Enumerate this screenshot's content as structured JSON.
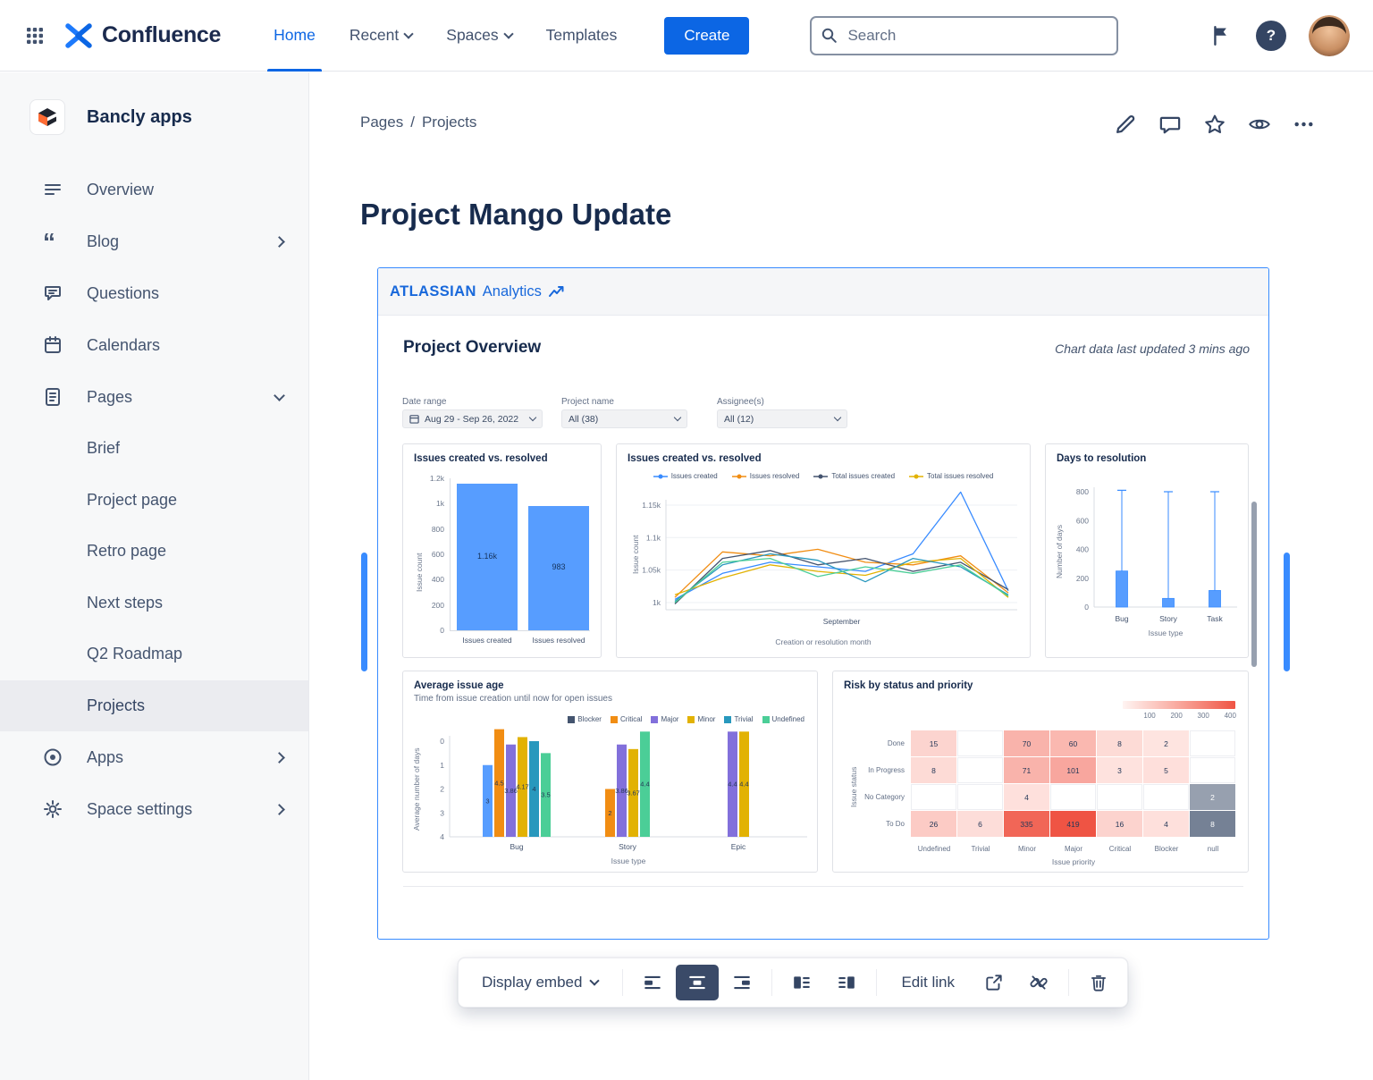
{
  "topnav": {
    "product_name": "Confluence",
    "nav_items": [
      {
        "label": "Home",
        "active": true,
        "chevron": false
      },
      {
        "label": "Recent",
        "active": false,
        "chevron": true
      },
      {
        "label": "Spaces",
        "active": false,
        "chevron": true
      },
      {
        "label": "Templates",
        "active": false,
        "chevron": false
      }
    ],
    "create_label": "Create",
    "search_placeholder": "Search",
    "icons": [
      "grid-icon",
      "search-icon",
      "flag-icon",
      "help-icon",
      "avatar"
    ]
  },
  "sidebar": {
    "space_name": "Bancly apps",
    "items": [
      {
        "label": "Overview",
        "icon": "overview-icon",
        "chevron": ""
      },
      {
        "label": "Blog",
        "icon": "blog-icon",
        "chevron": "right"
      },
      {
        "label": "Questions",
        "icon": "questions-icon",
        "chevron": ""
      },
      {
        "label": "Calendars",
        "icon": "calendar-icon",
        "chevron": ""
      },
      {
        "label": "Pages",
        "icon": "pages-icon",
        "chevron": "down"
      }
    ],
    "page_items": [
      {
        "label": "Brief",
        "selected": false
      },
      {
        "label": "Project page",
        "selected": false
      },
      {
        "label": "Retro page",
        "selected": false
      },
      {
        "label": "Next steps",
        "selected": false
      },
      {
        "label": "Q2 Roadmap",
        "selected": false
      },
      {
        "label": "Projects",
        "selected": true
      }
    ],
    "bottom_items": [
      {
        "label": "Apps",
        "icon": "apps-icon",
        "chevron": "right"
      },
      {
        "label": "Space settings",
        "icon": "gear-icon",
        "chevron": "right"
      }
    ]
  },
  "content": {
    "breadcrumb": [
      "Pages",
      "Projects"
    ],
    "breadcrumb_separator": "/",
    "title": "Project Mango Update",
    "action_icons": [
      "edit-icon",
      "comment-icon",
      "star-icon",
      "watch-icon",
      "more-icon"
    ]
  },
  "embed": {
    "brand_primary": "ATLASSIAN",
    "brand_secondary": "Analytics",
    "panel_title": "Project Overview",
    "updated_note": "Chart data last updated 3 mins ago",
    "filters": [
      {
        "label": "Date range",
        "value": "Aug 29 - Sep 26, 2022",
        "calendar_icon": true
      },
      {
        "label": "Project name",
        "value": "All (38)",
        "calendar_icon": false
      },
      {
        "label": "Assignee(s)",
        "value": "All (12)",
        "calendar_icon": false
      }
    ]
  },
  "chart_data": [
    {
      "type": "bar",
      "title": "Issues created vs. resolved",
      "ylabel": "Issue count",
      "xlabel": "",
      "categories": [
        "Issues created",
        "Issues resolved"
      ],
      "values": [
        1160,
        983
      ],
      "value_labels": [
        "1.16k",
        "983"
      ],
      "yticks": [
        "1.2k",
        "1k",
        "800",
        "600",
        "400",
        "200",
        "0"
      ],
      "ylim": [
        0,
        1200
      ],
      "bar_color": "#579DFF"
    },
    {
      "type": "line",
      "title": "Issues created vs. resolved",
      "ylabel": "Issue count",
      "xlabel": "Creation or resolution month",
      "x_tick_label": "September",
      "yticks": [
        "1.15k",
        "1.1k",
        "1.05k",
        "1k"
      ],
      "ytick_values": [
        1150,
        1100,
        1050,
        1000
      ],
      "ylim": [
        990,
        1185
      ],
      "series": [
        {
          "name": "Issues created",
          "color": "#388BFF",
          "in_legend": true,
          "values": [
            1005,
            1045,
            1062,
            1055,
            1048,
            1075,
            1170,
            1018
          ]
        },
        {
          "name": "Issues resolved",
          "color": "#F18D13",
          "in_legend": true,
          "values": [
            1008,
            1078,
            1072,
            1082,
            1062,
            1058,
            1072,
            1015
          ]
        },
        {
          "name": "Total issues created",
          "color": "#44546F",
          "in_legend": true,
          "values": [
            998,
            1068,
            1080,
            1058,
            1068,
            1048,
            1062,
            1020
          ]
        },
        {
          "name": "Total issues resolved",
          "color": "#E2B203",
          "in_legend": true,
          "values": [
            1012,
            1038,
            1058,
            1048,
            1042,
            1062,
            1068,
            1008
          ]
        },
        {
          "name": "",
          "color": "#2898BD",
          "in_legend": false,
          "values": [
            1002,
            1058,
            1075,
            1065,
            1032,
            1068,
            1055,
            1012
          ]
        },
        {
          "name": "",
          "color": "#4BCE97",
          "in_legend": false,
          "values": [
            1000,
            1062,
            1068,
            1040,
            1055,
            1045,
            1058,
            1010
          ]
        }
      ]
    },
    {
      "type": "boxplot",
      "title": "Days to resolution",
      "ylabel": "Number of days",
      "xlabel": "Issue type",
      "categories": [
        "Bug",
        "Story",
        "Task"
      ],
      "yticks": [
        "800",
        "600",
        "400",
        "200",
        "0"
      ],
      "ylim": [
        0,
        820
      ],
      "boxes": [
        {
          "whisker_high": 810,
          "box_top": 250,
          "box_bottom": 0
        },
        {
          "whisker_high": 800,
          "box_top": 60,
          "box_bottom": 0
        },
        {
          "whisker_high": 800,
          "box_top": 115,
          "box_bottom": 0
        }
      ],
      "box_color": "#579DFF",
      "line_color": "#388BFF"
    },
    {
      "type": "bar",
      "title": "Average issue age",
      "subtitle": "Time from issue creation until now for open issues",
      "ylabel": "Average number of days",
      "xlabel": "Issue type",
      "yticks": [
        "4",
        "3",
        "2",
        "1",
        "0"
      ],
      "ylim": [
        0,
        4.7
      ],
      "legend": [
        {
          "name": "Blocker",
          "color": "#44546F"
        },
        {
          "name": "Critical",
          "color": "#F18D13"
        },
        {
          "name": "Major",
          "color": "#8270DB"
        },
        {
          "name": "Minor",
          "color": "#E2B203"
        },
        {
          "name": "Trivial",
          "color": "#2898BD"
        },
        {
          "name": "Undefined",
          "color": "#4BCE97"
        }
      ],
      "groups": [
        {
          "category": "Bug",
          "bars": [
            {
              "value": 3,
              "label": "3",
              "color": "#579DFF"
            },
            {
              "value": 4.5,
              "label": "4.5",
              "color": "#F18D13"
            },
            {
              "value": 3.86,
              "label": "3.86",
              "color": "#8270DB"
            },
            {
              "value": 4.17,
              "label": "4.17",
              "color": "#E2B203"
            },
            {
              "value": 4,
              "label": "4",
              "color": "#2898BD"
            },
            {
              "value": 3.5,
              "label": "3.5",
              "color": "#4BCE97"
            }
          ]
        },
        {
          "category": "Story",
          "bars": [
            {
              "value": 2,
              "label": "2",
              "color": "#F18D13"
            },
            {
              "value": 3.86,
              "label": "3.86",
              "color": "#8270DB"
            },
            {
              "value": 3.67,
              "label": "3.67",
              "color": "#E2B203"
            },
            {
              "value": 4.4,
              "label": "4.4",
              "color": "#4BCE97"
            }
          ]
        },
        {
          "category": "Epic",
          "bars": [
            {
              "value": 4.4,
              "label": "4.4",
              "color": "#8270DB"
            },
            {
              "value": 4.4,
              "label": "4.4",
              "color": "#E2B203"
            }
          ]
        }
      ]
    },
    {
      "type": "heatmap",
      "title": "Risk by status and priority",
      "ylabel": "Issue status",
      "xlabel": "Issue priority",
      "rows": [
        "Done",
        "In Progress",
        "No Category",
        "To Do"
      ],
      "columns": [
        "Undefined",
        "Trivial",
        "Minor",
        "Major",
        "Critical",
        "Blocker",
        "null"
      ],
      "scale_labels": [
        "100",
        "200",
        "300",
        "400"
      ],
      "scale_max": 419,
      "cells": [
        [
          15,
          null,
          70,
          60,
          8,
          2,
          null
        ],
        [
          8,
          null,
          71,
          101,
          3,
          5,
          null
        ],
        [
          null,
          null,
          4,
          null,
          null,
          null,
          2
        ],
        [
          26,
          6,
          335,
          419,
          16,
          4,
          8
        ]
      ],
      "gray_cells": [
        [
          2,
          6
        ],
        [
          3,
          6
        ]
      ]
    }
  ],
  "toolbar": {
    "display_label": "Display embed",
    "edit_link_label": "Edit link",
    "icons": [
      "align-left-icon",
      "align-center-icon",
      "align-right-icon",
      "wrap-left-icon",
      "wrap-right-icon",
      "open-link-icon",
      "unlink-icon",
      "trash-icon"
    ],
    "active_icon": "align-center-icon"
  },
  "colors": {
    "accent_blue": "#0C66E4",
    "bar_blue": "#579DFF",
    "heat_low": "#FFECE9",
    "heat_high": "#EF5444",
    "gray_cell_light": "#97A0AF",
    "gray_cell_dark": "#758195"
  }
}
